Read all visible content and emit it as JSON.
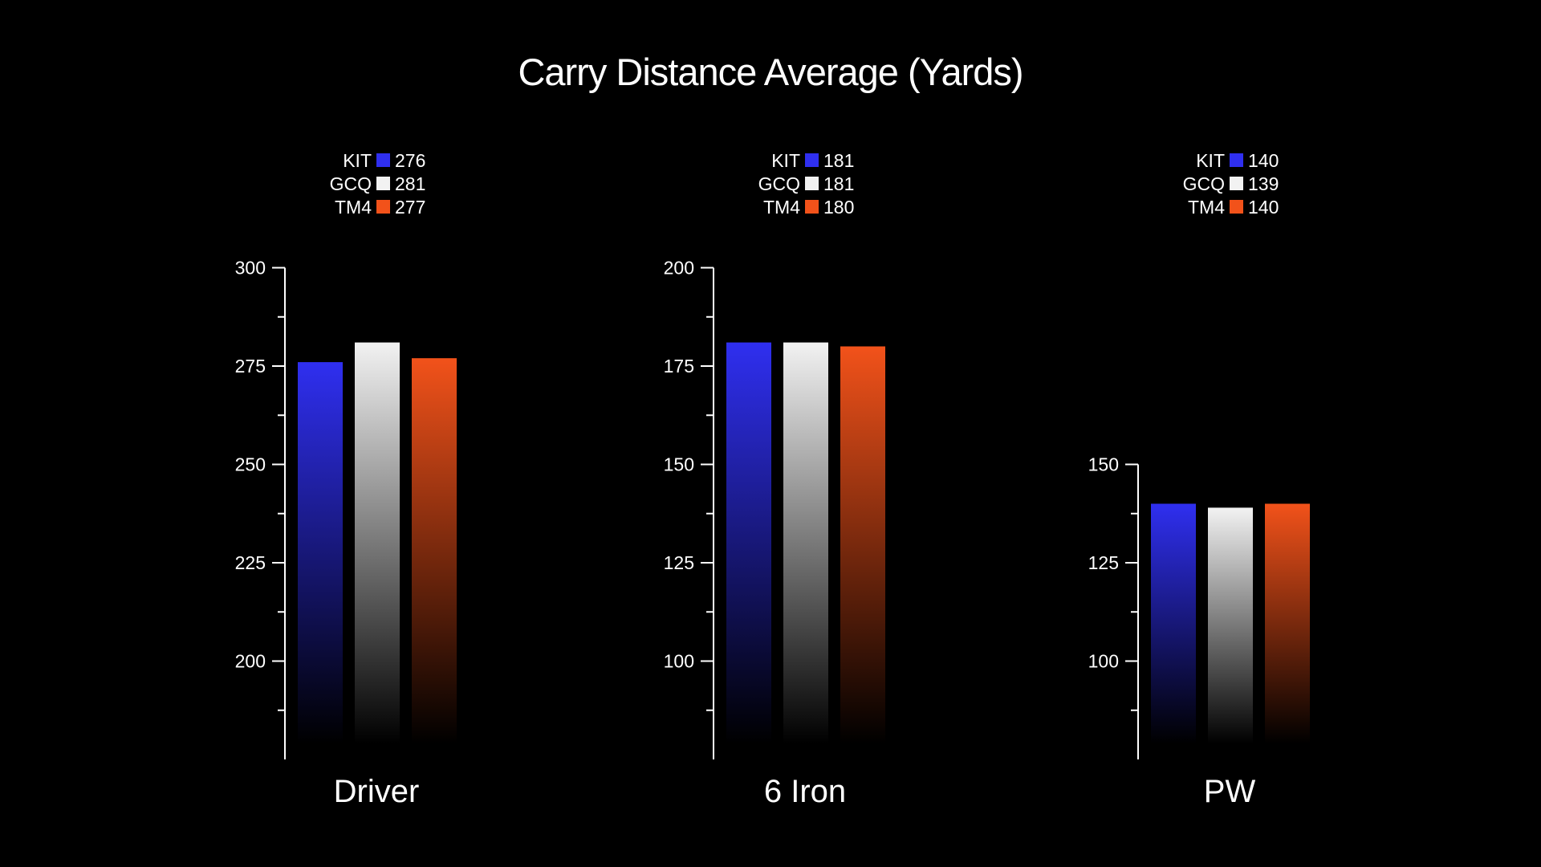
{
  "chart_data": [
    {
      "type": "bar",
      "title": "Carry Distance Average (Yards)",
      "category": "Driver",
      "ylim": [
        175,
        300
      ],
      "ticks": [
        200,
        225,
        250,
        275,
        300
      ],
      "series": [
        {
          "name": "KIT",
          "value": 276,
          "color": "#2f2ff0"
        },
        {
          "name": "GCQ",
          "value": 281,
          "color": "#f2f2f2"
        },
        {
          "name": "TM4",
          "value": 277,
          "color": "#f2521a"
        }
      ]
    },
    {
      "type": "bar",
      "category": "6 Iron",
      "ylim": [
        75,
        200
      ],
      "ticks": [
        100,
        125,
        150,
        175,
        200
      ],
      "series": [
        {
          "name": "KIT",
          "value": 181,
          "color": "#2f2ff0"
        },
        {
          "name": "GCQ",
          "value": 181,
          "color": "#f2f2f2"
        },
        {
          "name": "TM4",
          "value": 180,
          "color": "#f2521a"
        }
      ]
    },
    {
      "type": "bar",
      "category": "PW",
      "ylim": [
        75,
        150
      ],
      "ticks": [
        100,
        125,
        150
      ],
      "series": [
        {
          "name": "KIT",
          "value": 140,
          "color": "#2f2ff0"
        },
        {
          "name": "GCQ",
          "value": 139,
          "color": "#f2f2f2"
        },
        {
          "name": "TM4",
          "value": 140,
          "color": "#f2521a"
        }
      ]
    }
  ],
  "title": "Carry Distance Average (Yards)",
  "grid": false,
  "legend_placement": "top"
}
